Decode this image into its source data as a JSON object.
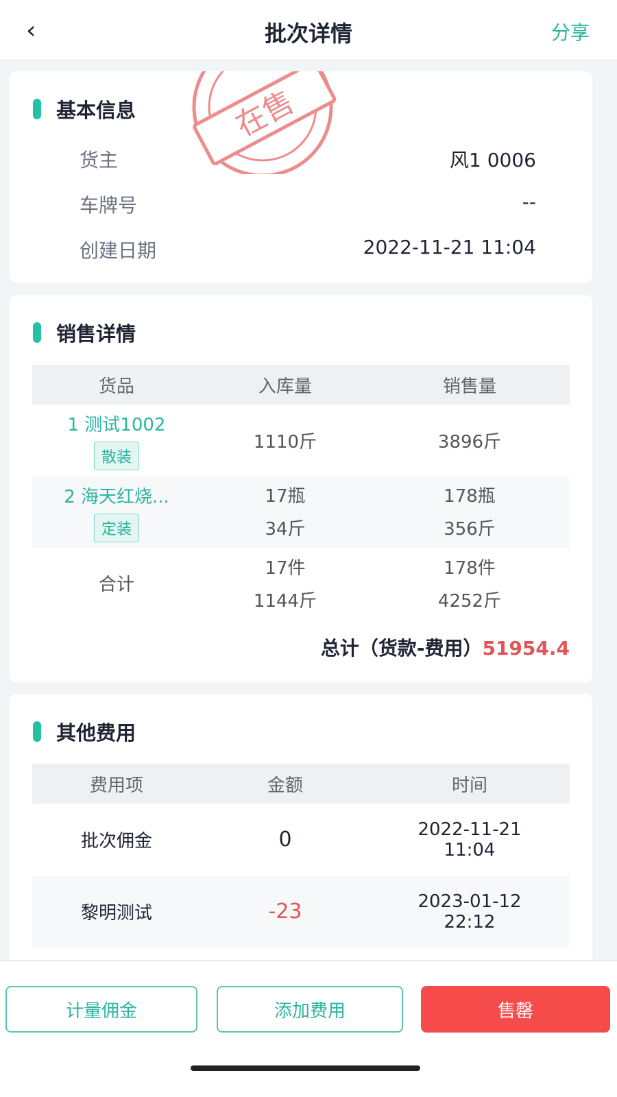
{
  "header": {
    "title": "批次详情",
    "share": "分享"
  },
  "basic": {
    "title": "基本信息",
    "stamp": "在售",
    "rows": [
      {
        "k": "货主",
        "v": "风1 0006"
      },
      {
        "k": "车牌号",
        "v": "--"
      },
      {
        "k": "创建日期",
        "v": "2022-11-21 11:04"
      }
    ]
  },
  "sales": {
    "title": "销售详情",
    "headers": [
      "货品",
      "入库量",
      "销售量"
    ],
    "rows": [
      {
        "name": "1 测试1002",
        "tag": "散装",
        "in": [
          "1110斤"
        ],
        "out": [
          "3896斤"
        ]
      },
      {
        "name": "2 海天红烧...",
        "tag": "定装",
        "in": [
          "17瓶",
          "34斤"
        ],
        "out": [
          "178瓶",
          "356斤"
        ]
      }
    ],
    "total": {
      "label": "合计",
      "in": [
        "17件",
        "1144斤"
      ],
      "out": [
        "178件",
        "4252斤"
      ]
    },
    "grand_label": "总计（货款-费用）",
    "grand_value": "51954.4"
  },
  "fees": {
    "title": "其他费用",
    "headers": [
      "费用项",
      "金额",
      "时间"
    ],
    "rows": [
      {
        "item": "批次佣金",
        "amount": "0",
        "date": "2022-11-21",
        "time": "11:04"
      },
      {
        "item": "黎明测试",
        "amount": "-23",
        "date": "2023-01-12",
        "time": "22:12"
      }
    ]
  },
  "footer": {
    "b1": "计量佣金",
    "b2": "添加费用",
    "b3": "售罄"
  },
  "colors": {
    "accent": "#2bb5a0",
    "danger": "#f54b4b"
  }
}
